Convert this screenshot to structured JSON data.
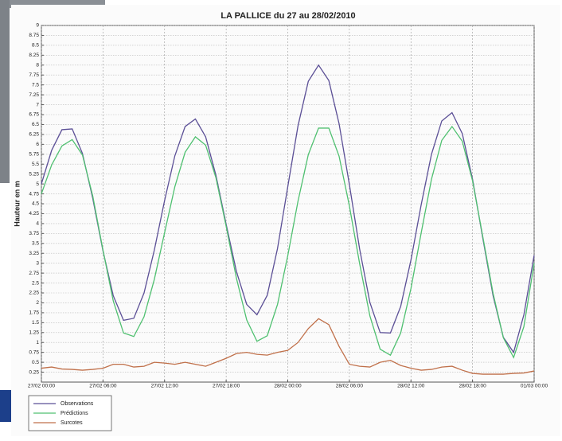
{
  "chart_data": {
    "type": "line",
    "title": "LA PALLICE du 27 au 28/02/2010",
    "y_label": "Hauteur en m",
    "x": [
      0,
      1,
      2,
      3,
      4,
      5,
      6,
      7,
      8,
      9,
      10,
      11,
      12,
      13,
      14,
      15,
      16,
      17,
      18,
      19,
      20,
      21,
      22,
      23,
      24,
      25,
      26,
      27,
      28,
      29,
      30,
      31,
      32,
      33,
      34,
      35,
      36,
      37,
      38,
      39,
      40,
      41,
      42,
      43,
      44,
      45,
      46,
      47,
      48
    ],
    "xlim": [
      0,
      48
    ],
    "xticks": [
      {
        "value": 0,
        "label": "27/02 00:00"
      },
      {
        "value": 6,
        "label": "27/02 06:00"
      },
      {
        "value": 12,
        "label": "27/02 12:00"
      },
      {
        "value": 18,
        "label": "27/02 18:00"
      },
      {
        "value": 24,
        "label": "28/02 00:00"
      },
      {
        "value": 30,
        "label": "28/02 06:00"
      },
      {
        "value": 36,
        "label": "28/02 12:00"
      },
      {
        "value": 42,
        "label": "28/02 18:00"
      },
      {
        "value": 48,
        "label": "01/03 00:00"
      }
    ],
    "ylim": [
      0,
      9
    ],
    "yticks": [
      0.25,
      0.5,
      0.75,
      1,
      1.25,
      1.5,
      1.75,
      2,
      2.25,
      2.5,
      2.75,
      3,
      3.25,
      3.5,
      3.75,
      4,
      4.25,
      4.5,
      4.75,
      5,
      5.25,
      5.5,
      5.75,
      6,
      6.25,
      6.5,
      6.75,
      7,
      7.25,
      7.5,
      7.75,
      8,
      8.25,
      8.5,
      8.75,
      9
    ],
    "grid": true,
    "legend": "below-left",
    "series": [
      {
        "name": "Observations",
        "color": "#5b4f96",
        "values": [
          5.0,
          5.85,
          6.37,
          6.39,
          5.77,
          4.64,
          3.31,
          2.18,
          1.56,
          1.61,
          2.25,
          3.33,
          4.58,
          5.71,
          6.45,
          6.64,
          6.19,
          5.22,
          3.98,
          2.79,
          1.96,
          1.7,
          2.19,
          3.37,
          4.93,
          6.47,
          7.59,
          8.0,
          7.61,
          6.52,
          4.99,
          3.36,
          2.01,
          1.25,
          1.24,
          1.91,
          3.08,
          4.48,
          5.75,
          6.59,
          6.8,
          6.27,
          5.12,
          3.63,
          2.18,
          1.13,
          0.75,
          1.7,
          3.2
        ]
      },
      {
        "name": "Prédictions",
        "color": "#4fc070",
        "values": [
          4.75,
          5.48,
          5.96,
          6.12,
          5.73,
          4.7,
          3.33,
          2.05,
          1.24,
          1.15,
          1.65,
          2.59,
          3.77,
          4.93,
          5.8,
          6.19,
          5.98,
          5.16,
          3.93,
          2.62,
          1.57,
          1.03,
          1.17,
          1.96,
          3.19,
          4.57,
          5.74,
          6.41,
          6.41,
          5.7,
          4.45,
          2.99,
          1.67,
          0.83,
          0.68,
          1.24,
          2.36,
          3.77,
          5.12,
          6.1,
          6.45,
          6.08,
          5.08,
          3.67,
          2.24,
          1.12,
          0.62,
          1.4,
          3.0
        ]
      },
      {
        "name": "Surcotes",
        "color": "#c0704a",
        "values": [
          0.35,
          0.38,
          0.33,
          0.32,
          0.3,
          0.32,
          0.35,
          0.45,
          0.45,
          0.38,
          0.4,
          0.5,
          0.48,
          0.45,
          0.5,
          0.45,
          0.4,
          0.5,
          0.6,
          0.72,
          0.75,
          0.7,
          0.68,
          0.75,
          0.8,
          1.0,
          1.35,
          1.6,
          1.45,
          0.9,
          0.45,
          0.4,
          0.38,
          0.5,
          0.55,
          0.42,
          0.35,
          0.3,
          0.32,
          0.38,
          0.4,
          0.3,
          0.22,
          0.2,
          0.2,
          0.2,
          0.22,
          0.23,
          0.28
        ]
      }
    ]
  }
}
